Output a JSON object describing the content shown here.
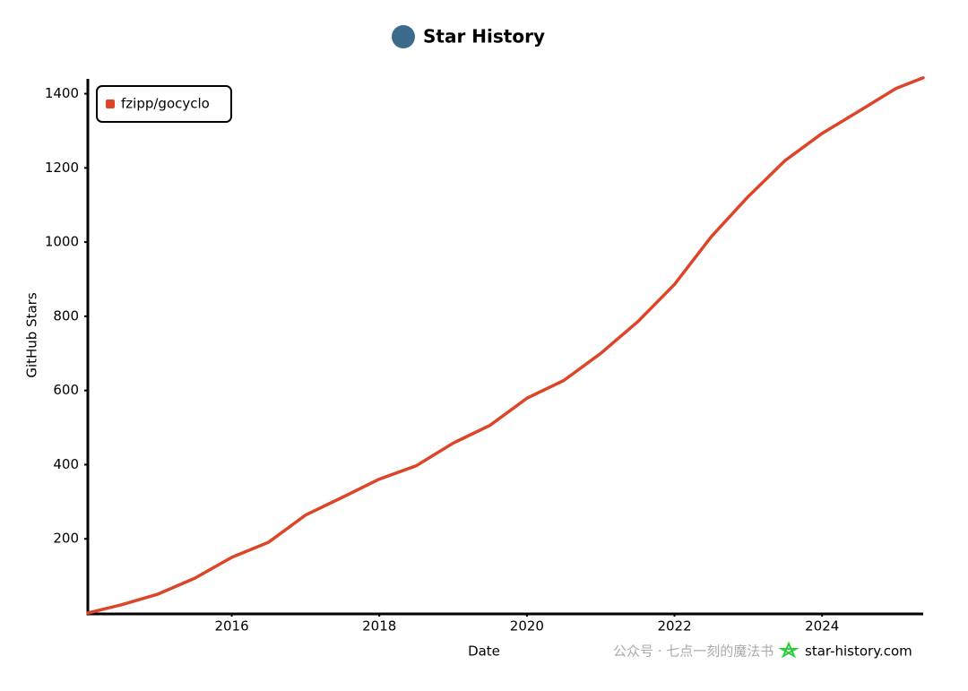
{
  "chart_data": {
    "type": "line",
    "title": "Star History",
    "xlabel": "Date",
    "ylabel": "GitHub Stars",
    "x": [
      2014.05,
      2014.5,
      2015.0,
      2015.5,
      2016.0,
      2016.5,
      2017.0,
      2017.5,
      2018.0,
      2018.5,
      2019.0,
      2019.5,
      2020.0,
      2020.5,
      2021.0,
      2021.5,
      2022.0,
      2022.5,
      2023.0,
      2023.5,
      2024.0,
      2024.5,
      2025.0,
      2025.37
    ],
    "series": [
      {
        "name": "fzipp/gocyclo",
        "color": "#dd4528",
        "values": [
          0,
          22,
          51,
          94,
          150,
          191,
          264,
          312,
          361,
          397,
          458,
          506,
          579,
          627,
          700,
          785,
          886,
          1015,
          1123,
          1220,
          1293,
          1353,
          1414,
          1443
        ]
      }
    ],
    "xlim": [
      2014.05,
      2025.37
    ],
    "xticks": [
      2016,
      2018,
      2020,
      2022,
      2024
    ],
    "ylim": [
      0,
      1440
    ],
    "yticks": [
      200,
      400,
      600,
      800,
      1000,
      1200,
      1400
    ],
    "legend": "top-left",
    "grid": false,
    "watermark": "star-history.com",
    "overlay_text": "公众号 · 七点一刻的魔法书"
  }
}
